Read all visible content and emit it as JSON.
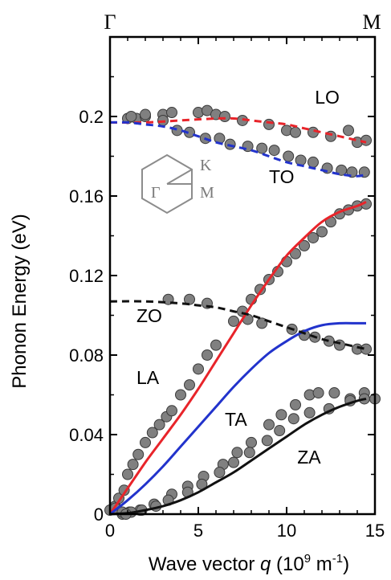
{
  "chart_data": {
    "type": "line",
    "xlabel_prefix": "Wave vector ",
    "xlabel_var": "q",
    "xlabel_unit_open": " (10",
    "xlabel_unit_exp1": "9",
    "xlabel_unit_mid": " m",
    "xlabel_unit_exp2": "-1",
    "xlabel_unit_close": ")",
    "ylabel": "Phonon Energy (eV)",
    "xlim": [
      0,
      15
    ],
    "ylim": [
      0,
      0.24
    ],
    "x_ticks": [
      0,
      5,
      10,
      15
    ],
    "x_tick_labels": [
      "0",
      "5",
      "10",
      "15"
    ],
    "y_ticks": [
      0,
      0.04,
      0.08,
      0.12,
      0.16,
      0.2
    ],
    "y_tick_labels": [
      "0",
      "0.04",
      "0.08",
      "0.12",
      "0.16",
      "0.2"
    ],
    "high_symmetry_points": [
      {
        "label": "Γ",
        "x": 0
      },
      {
        "label": "M",
        "x": 15
      }
    ],
    "inset_labels": {
      "gamma": "Γ",
      "k": "K",
      "m": "M"
    },
    "colors": {
      "LO": "#e8242a",
      "TO": "#2233cc",
      "LA": "#e8242a",
      "TA": "#2233cc",
      "ZO": "#111111",
      "ZA": "#111111",
      "points": "#808080"
    },
    "series": [
      {
        "name": "LO",
        "style": "dashed",
        "label_x": 11.6,
        "label_y": 0.2065,
        "x": [
          0,
          2,
          4,
          6,
          7,
          8,
          9,
          10,
          11,
          12,
          13,
          14,
          14.5
        ],
        "y": [
          0.197,
          0.197,
          0.198,
          0.199,
          0.199,
          0.198,
          0.197,
          0.196,
          0.194,
          0.192,
          0.19,
          0.188,
          0.187
        ]
      },
      {
        "name": "TO",
        "style": "dashed",
        "label_x": 9.0,
        "label_y": 0.1665,
        "x": [
          0,
          1,
          2,
          3,
          4,
          5,
          6,
          7,
          8,
          9,
          10,
          11,
          12,
          13,
          14,
          14.5
        ],
        "y": [
          0.197,
          0.197,
          0.196,
          0.195,
          0.193,
          0.19,
          0.187,
          0.185,
          0.183,
          0.18,
          0.177,
          0.175,
          0.173,
          0.171,
          0.17,
          0.171
        ]
      },
      {
        "name": "LA",
        "style": "solid",
        "label_x": 1.5,
        "label_y": 0.0655,
        "x": [
          0,
          1,
          2,
          3,
          4,
          5,
          6,
          7,
          8,
          9,
          10,
          11,
          12,
          13,
          14,
          14.5
        ],
        "y": [
          0,
          0.013,
          0.026,
          0.038,
          0.05,
          0.063,
          0.077,
          0.091,
          0.105,
          0.118,
          0.13,
          0.139,
          0.147,
          0.152,
          0.155,
          0.157
        ]
      },
      {
        "name": "TA",
        "style": "solid",
        "label_x": 6.5,
        "label_y": 0.0445,
        "x": [
          0,
          1,
          2,
          3,
          4,
          5,
          6,
          7,
          8,
          9,
          10,
          11,
          12,
          13,
          14,
          14.5
        ],
        "y": [
          0,
          0.007,
          0.015,
          0.024,
          0.034,
          0.044,
          0.054,
          0.064,
          0.073,
          0.081,
          0.087,
          0.092,
          0.095,
          0.096,
          0.096,
          0.096
        ]
      },
      {
        "name": "ZO",
        "style": "dashed",
        "label_x": 1.5,
        "label_y": 0.0965,
        "x": [
          0,
          2,
          4,
          5,
          6,
          7,
          8,
          9,
          10,
          11,
          12,
          13,
          14,
          14.5
        ],
        "y": [
          0.107,
          0.107,
          0.106,
          0.105,
          0.104,
          0.102,
          0.1,
          0.097,
          0.094,
          0.091,
          0.088,
          0.086,
          0.084,
          0.083
        ]
      },
      {
        "name": "ZA",
        "style": "solid",
        "label_x": 10.6,
        "label_y": 0.0255,
        "x": [
          0,
          1,
          2,
          3,
          4,
          5,
          6,
          7,
          8,
          9,
          10,
          11,
          12,
          13,
          14,
          14.5
        ],
        "y": [
          0,
          0.0005,
          0.002,
          0.004,
          0.007,
          0.011,
          0.016,
          0.021,
          0.027,
          0.033,
          0.039,
          0.045,
          0.05,
          0.054,
          0.057,
          0.058
        ]
      }
    ],
    "points": {
      "x": [
        0.3,
        0.5,
        0.8,
        1.0,
        1.3,
        1.6,
        2.0,
        2.4,
        2.8,
        3.2,
        3.5,
        4.0,
        4.5,
        5.0,
        5.5,
        6.0,
        7.0,
        7.5,
        8.0,
        8.5,
        9.0,
        9.5,
        10.0,
        10.5,
        11.0,
        11.5,
        12.0,
        12.5,
        13.0,
        13.5,
        14.0,
        14.5,
        1.0,
        1.5,
        2.0,
        3.0,
        3.5,
        5.0,
        5.5,
        6.0,
        6.5,
        7.5,
        9.0,
        10.0,
        10.5,
        11.5,
        12.5,
        13.5,
        14.0,
        14.5,
        1.2,
        2.0,
        3.0,
        3.8,
        4.5,
        5.4,
        6.2,
        6.8,
        7.8,
        8.6,
        9.3,
        10.1,
        10.8,
        11.5,
        12.3,
        13.1,
        13.7,
        14.4,
        3.3,
        4.5,
        5.5,
        7.8,
        8.6,
        10.3,
        11.0,
        11.6,
        12.4,
        13.0,
        14.0,
        14.5,
        1.1,
        1.7,
        2.5,
        3.5,
        4.4,
        5.3,
        6.4,
        7.2,
        8.0,
        9.0,
        9.7,
        10.5,
        11.3,
        11.8,
        12.7,
        13.6,
        14.4,
        15.0,
        1.2,
        1.8,
        2.6,
        3.3,
        4.4,
        5.2,
        6.2,
        7.0,
        7.9,
        8.9,
        9.6,
        10.4,
        11.3,
        12.4,
        13.6,
        14.4,
        0.0,
        0.3,
        0.7,
        0.7,
        0.9
      ],
      "y": [
        0.004,
        0.008,
        0.012,
        0.02,
        0.025,
        0.03,
        0.036,
        0.041,
        0.045,
        0.049,
        0.052,
        0.06,
        0.065,
        0.073,
        0.08,
        0.085,
        0.097,
        0.102,
        0.108,
        0.113,
        0.118,
        0.122,
        0.127,
        0.131,
        0.135,
        0.139,
        0.142,
        0.147,
        0.151,
        0.153,
        0.155,
        0.156,
        0.199,
        0.199,
        0.2,
        0.201,
        0.202,
        0.202,
        0.203,
        0.201,
        0.2,
        0.198,
        0.196,
        0.193,
        0.192,
        0.192,
        0.19,
        0.193,
        0.187,
        0.188,
        0.2,
        0.201,
        0.198,
        0.193,
        0.192,
        0.189,
        0.189,
        0.186,
        0.185,
        0.184,
        0.183,
        0.18,
        0.178,
        0.177,
        0.174,
        0.173,
        0.172,
        0.172,
        0.108,
        0.108,
        0.106,
        0.098,
        0.096,
        0.093,
        0.09,
        0.089,
        0.087,
        0.085,
        0.083,
        0.083,
        0.001,
        0.002,
        0.005,
        0.01,
        0.014,
        0.019,
        0.025,
        0.031,
        0.036,
        0.045,
        0.05,
        0.055,
        0.06,
        0.061,
        0.061,
        0.058,
        0.061,
        0.058,
        0.001,
        0.002,
        0.004,
        0.007,
        0.011,
        0.015,
        0.021,
        0.026,
        0.031,
        0.037,
        0.042,
        0.048,
        0.051,
        0.053,
        0.057,
        0.058,
        0.002,
        0.003,
        0.0,
        0.001,
        0.0
      ]
    }
  }
}
